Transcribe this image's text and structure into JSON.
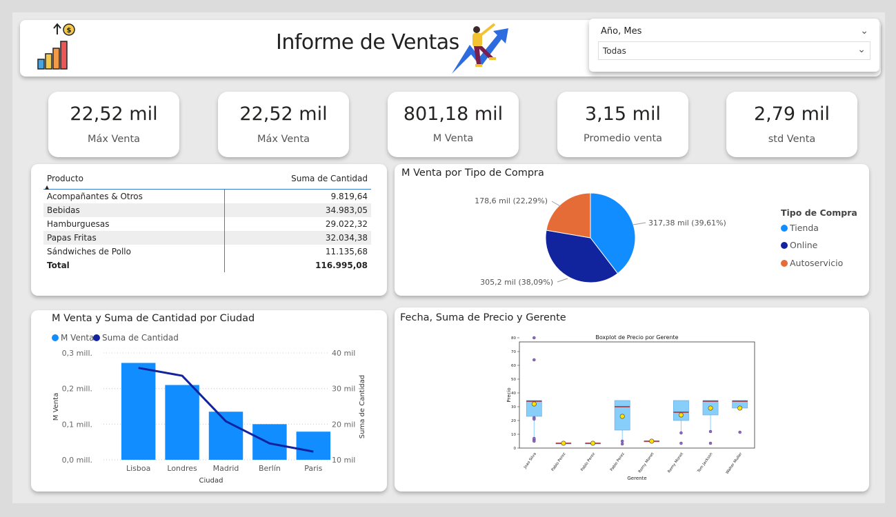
{
  "header": {
    "title": "Informe de Ventas"
  },
  "slicer": {
    "title": "Año, Mes",
    "value": "Todas"
  },
  "kpis": [
    {
      "value": "22,52 mil",
      "label": "Máx Venta"
    },
    {
      "value": "22,52 mil",
      "label": "Máx Venta"
    },
    {
      "value": "801,18 mil",
      "label": "M Venta"
    },
    {
      "value": "3,15 mil",
      "label": "Promedio venta"
    },
    {
      "value": "2,79 mil",
      "label": "std Venta"
    }
  ],
  "table": {
    "col_product": "Producto",
    "col_quantity": "Suma de Cantidad",
    "rows": [
      {
        "product": "Acompañantes & Otros",
        "quantity": "9.819,64"
      },
      {
        "product": "Bebidas",
        "quantity": "34.983,05"
      },
      {
        "product": "Hamburguesas",
        "quantity": "29.022,32"
      },
      {
        "product": "Papas Fritas",
        "quantity": "32.034,38"
      },
      {
        "product": "Sándwiches de Pollo",
        "quantity": "11.135,68"
      }
    ],
    "total_label": "Total",
    "total_value": "116.995,08"
  },
  "pie": {
    "title": "M Venta por Tipo de Compra",
    "legend_title": "Tipo de Compra"
  },
  "combo": {
    "title": "M Venta y Suma de Cantidad por Ciudad",
    "legend_bar": "M Venta",
    "legend_line": "Suma de Cantidad"
  },
  "boxplot": {
    "title": "Fecha, Suma de Precio y Gerente",
    "inner_title": "Boxplot de Precio por Gerente"
  },
  "chart_data": [
    {
      "type": "pie",
      "title": "M Venta por Tipo de Compra",
      "legend_title": "Tipo de Compra",
      "legend_position": "right",
      "slices": [
        {
          "name": "Tienda",
          "value": 317.38,
          "label": "317,38 mil (39,61%)",
          "color": "#118DFF"
        },
        {
          "name": "Online",
          "value": 305.2,
          "label": "305,2 mil (38,09%)",
          "color": "#12239E"
        },
        {
          "name": "Autoservicio",
          "value": 178.6,
          "label": "178,6 mil (22,29%)",
          "color": "#E66C37"
        }
      ]
    },
    {
      "type": "bar",
      "title": "M Venta y Suma de Cantidad por Ciudad",
      "xlabel": "Ciudad",
      "ylabel": "M Venta",
      "y2label": "Suma de Cantidad",
      "categories": [
        "Lisboa",
        "Londres",
        "Madrid",
        "Berlín",
        "Paris"
      ],
      "ylim": [
        0,
        0.3
      ],
      "y_ticks": [
        "0,0 mill.",
        "0,1 mill.",
        "0,2 mill.",
        "0,3 mill."
      ],
      "y2lim": [
        10,
        40
      ],
      "y2_ticks": [
        "10 mil",
        "20 mil",
        "30 mil",
        "40 mil"
      ],
      "series": [
        {
          "name": "M Venta",
          "kind": "bar",
          "color": "#118DFF",
          "values": [
            0.272,
            0.21,
            0.135,
            0.1,
            0.079
          ]
        },
        {
          "name": "Suma de Cantidad",
          "kind": "line",
          "color": "#12239E",
          "values": [
            35.8,
            33.6,
            20.8,
            14.6,
            12.3
          ]
        }
      ],
      "legend_position": "top-left",
      "grid": true
    },
    {
      "type": "boxplot",
      "title": "Boxplot de Precio por Gerente",
      "xlabel": "Gerente",
      "ylabel": "Precio",
      "ylim": [
        0,
        80
      ],
      "y_ticks": [
        0,
        10,
        20,
        30,
        40,
        50,
        60,
        70,
        80
      ],
      "categories": [
        "Joao Silva",
        "Pablo   Perez",
        "Pablo  Perez",
        "Pablo Perez",
        "Remy  Monet",
        "Remy Monet",
        "Tom Jackson",
        "Walter Muller"
      ],
      "boxes": [
        {
          "q1": 23,
          "median": 34,
          "q3": 34.5,
          "whisker_low": 7,
          "whisker_high": 34.5,
          "mean": 32,
          "outliers": [
            80,
            64,
            22,
            21,
            6,
            5,
            7
          ]
        },
        {
          "q1": 3.5,
          "median": 3.5,
          "q3": 3.5,
          "whisker_low": 3.5,
          "whisker_high": 3.5,
          "mean": 3.5,
          "outliers": []
        },
        {
          "q1": 3.5,
          "median": 3.5,
          "q3": 3.5,
          "whisker_low": 3.5,
          "whisker_high": 3.5,
          "mean": 3.5,
          "outliers": []
        },
        {
          "q1": 13,
          "median": 30,
          "q3": 34.5,
          "whisker_low": 5,
          "whisker_high": 34.5,
          "mean": 23,
          "outliers": [
            3,
            5
          ]
        },
        {
          "q1": 5,
          "median": 5,
          "q3": 5,
          "whisker_low": 5,
          "whisker_high": 5,
          "mean": 5,
          "outliers": []
        },
        {
          "q1": 20,
          "median": 26,
          "q3": 34.5,
          "whisker_low": 11,
          "whisker_high": 34.5,
          "mean": 24,
          "outliers": [
            3.5,
            11
          ]
        },
        {
          "q1": 24,
          "median": 34,
          "q3": 34.5,
          "whisker_low": 12,
          "whisker_high": 34.5,
          "mean": 29,
          "outliers": [
            3.5,
            12
          ]
        },
        {
          "q1": 29,
          "median": 34,
          "q3": 34.5,
          "whisker_low": 29,
          "whisker_high": 34.5,
          "mean": 29,
          "outliers": [
            11.5
          ]
        }
      ],
      "box_color": "#87CEFA",
      "median_color": "#B22222",
      "mean_color": "#FFE000"
    }
  ]
}
